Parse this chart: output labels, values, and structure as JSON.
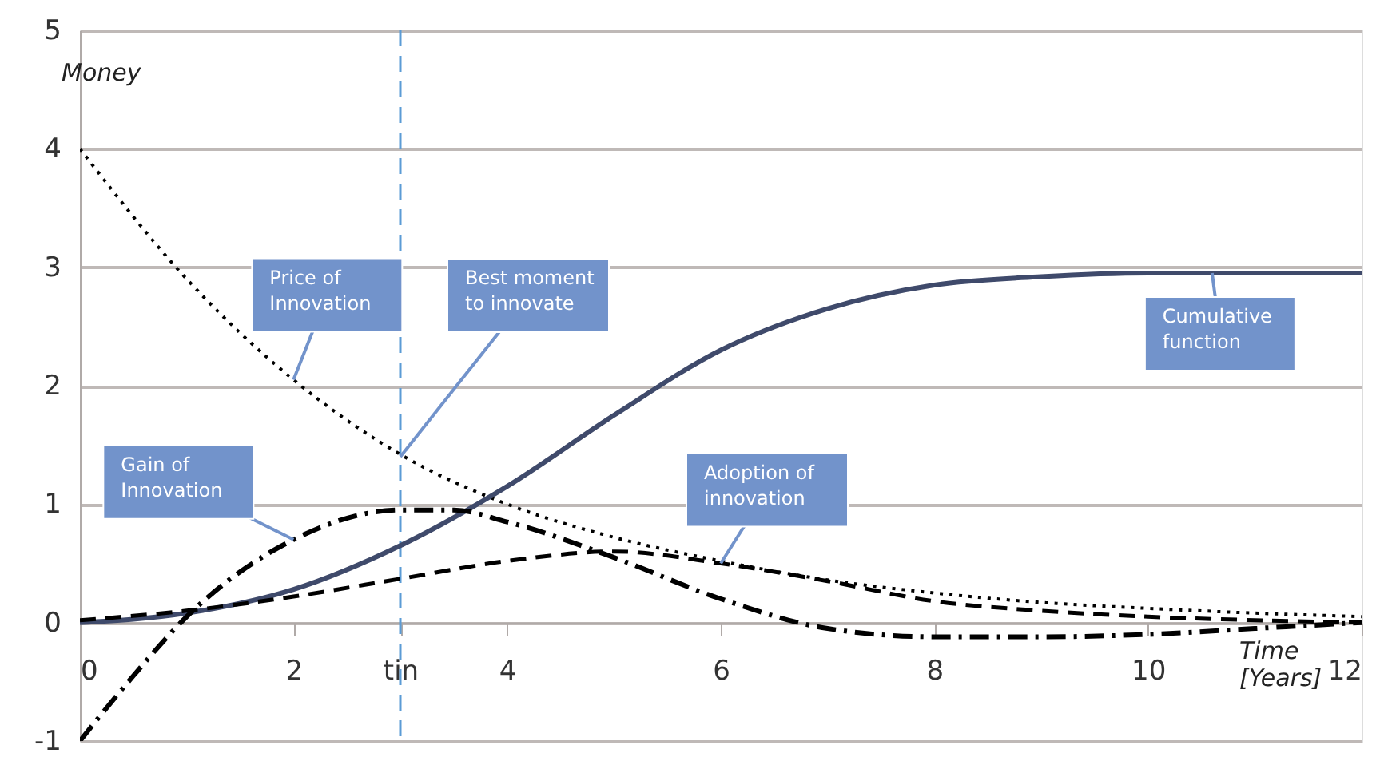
{
  "chart_data": {
    "type": "line",
    "x": [
      0,
      1,
      2,
      3,
      4,
      5,
      6,
      7,
      8,
      9,
      10,
      11,
      12
    ],
    "series": [
      {
        "color": "#000000",
        "line_style": "dotted",
        "values": [
          4.0,
          2.9,
          2.05,
          1.42,
          1.0,
          0.72,
          0.52,
          0.36,
          0.25,
          0.17,
          0.12,
          0.08,
          0.05
        ]
      },
      {
        "color": "#3f4a6b",
        "line_style": "solid",
        "values": [
          0.0,
          0.08,
          0.28,
          0.65,
          1.15,
          1.75,
          2.3,
          2.65,
          2.85,
          2.92,
          2.95,
          2.95,
          2.95
        ]
      },
      {
        "color": "#000000",
        "line_style": "dashed",
        "values": [
          0.02,
          0.1,
          0.22,
          0.37,
          0.52,
          0.6,
          0.5,
          0.35,
          0.18,
          0.1,
          0.05,
          0.02,
          0.0
        ]
      },
      {
        "color": "#000000",
        "line_style": "dashdot",
        "x": [
          0,
          0.5,
          1,
          2,
          3,
          3.5,
          4,
          5,
          6,
          7,
          8,
          9,
          10,
          11,
          12
        ],
        "values": [
          -1.0,
          -0.45,
          0.05,
          0.7,
          0.95,
          0.95,
          0.85,
          0.55,
          0.2,
          -0.05,
          -0.12,
          -0.12,
          -0.1,
          -0.05,
          0.0
        ]
      }
    ],
    "xlabel": "Time [Years]",
    "ylabel": "Money",
    "xlim": [
      0,
      12
    ],
    "xticks": [
      0,
      2,
      {
        "value": 3,
        "label": "tin"
      },
      4,
      6,
      8,
      10,
      12
    ],
    "ylim": [
      -1,
      5
    ],
    "yticks": [
      -1,
      0,
      1,
      2,
      3,
      4,
      5
    ],
    "grid": "y",
    "ref_lines": [
      {
        "axis": "x",
        "value": 3,
        "color": "#5b9bd5",
        "line_style": "dashed"
      }
    ],
    "annotations": [
      {
        "text": "Price of Innovation",
        "x": 2,
        "y": 2.05
      },
      {
        "text": "Best moment to innovate",
        "x": 3,
        "y": 1.4
      },
      {
        "text": "Gain of Innovation",
        "x": 2,
        "y": 0.7
      },
      {
        "text": "Adoption of innovation",
        "x": 6,
        "y": 0.5
      },
      {
        "text": "Cumulative function",
        "x": 10.6,
        "y": 2.95
      }
    ]
  }
}
